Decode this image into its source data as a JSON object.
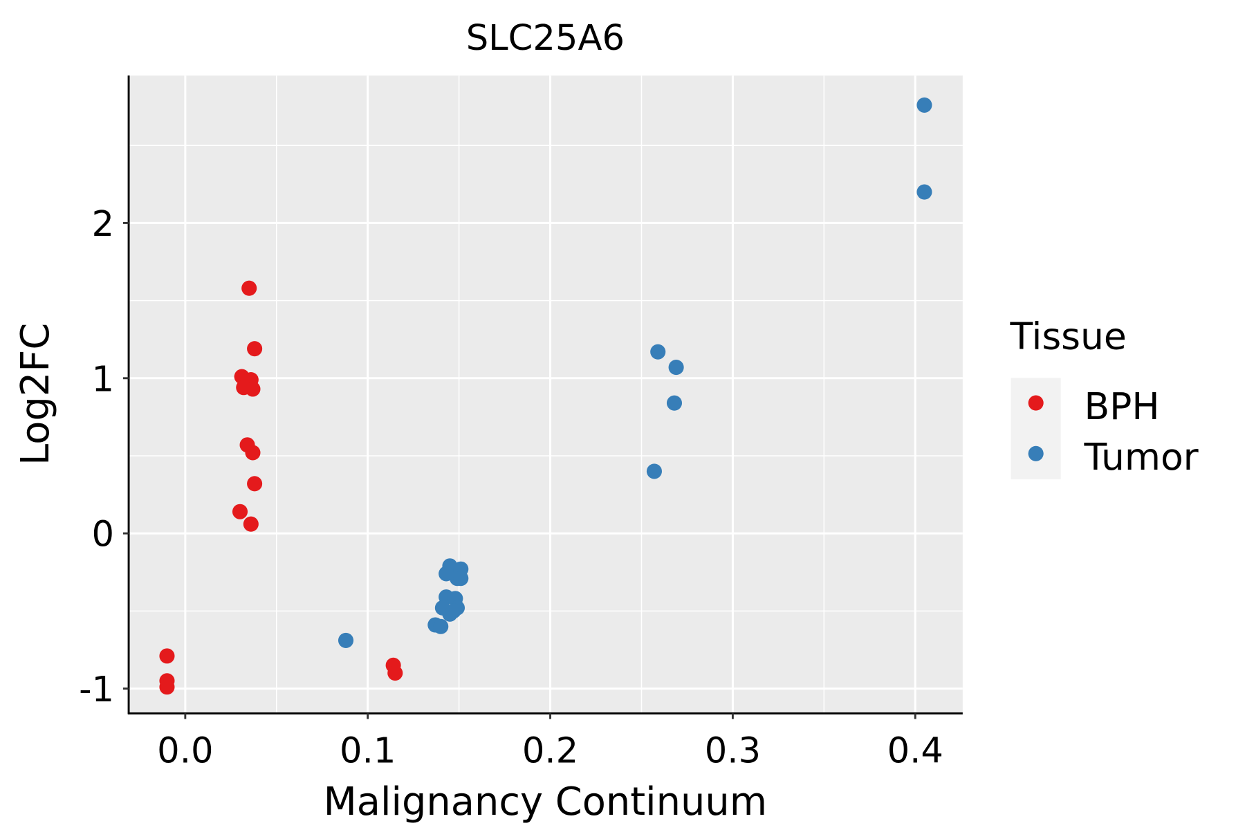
{
  "chart_data": {
    "type": "scatter",
    "title": "SLC25A6",
    "xlabel": "Malignancy Continuum",
    "ylabel": "Log2FC",
    "xlim": [
      -0.031,
      0.426
    ],
    "ylim": [
      -1.16,
      2.95
    ],
    "xticks": [
      0.0,
      0.1,
      0.2,
      0.3,
      0.4
    ],
    "xtick_labels": [
      "0.0",
      "0.1",
      "0.2",
      "0.3",
      "0.4"
    ],
    "yticks": [
      -1,
      0,
      1,
      2
    ],
    "ytick_labels": [
      "-1",
      "0",
      "1",
      "2"
    ],
    "grid": true,
    "legend": {
      "title": "Tissue",
      "placement": "right"
    },
    "series": [
      {
        "name": "BPH",
        "color": "#E41A1C",
        "points": [
          [
            0.035,
            1.58
          ],
          [
            0.038,
            1.19
          ],
          [
            0.031,
            1.01
          ],
          [
            0.036,
            0.99
          ],
          [
            0.032,
            0.94
          ],
          [
            0.037,
            0.93
          ],
          [
            0.034,
            0.57
          ],
          [
            0.037,
            0.52
          ],
          [
            0.038,
            0.32
          ],
          [
            0.03,
            0.14
          ],
          [
            0.036,
            0.06
          ],
          [
            -0.01,
            -0.79
          ],
          [
            -0.01,
            -0.95
          ],
          [
            -0.01,
            -0.99
          ],
          [
            0.114,
            -0.85
          ],
          [
            0.115,
            -0.9
          ]
        ]
      },
      {
        "name": "Tumor",
        "color": "#377EB8",
        "points": [
          [
            0.405,
            2.76
          ],
          [
            0.405,
            2.2
          ],
          [
            0.259,
            1.17
          ],
          [
            0.269,
            1.07
          ],
          [
            0.268,
            0.84
          ],
          [
            0.257,
            0.4
          ],
          [
            0.088,
            -0.69
          ],
          [
            0.145,
            -0.21
          ],
          [
            0.151,
            -0.23
          ],
          [
            0.143,
            -0.26
          ],
          [
            0.149,
            -0.29
          ],
          [
            0.151,
            -0.29
          ],
          [
            0.143,
            -0.41
          ],
          [
            0.148,
            -0.42
          ],
          [
            0.141,
            -0.48
          ],
          [
            0.149,
            -0.48
          ],
          [
            0.145,
            -0.52
          ],
          [
            0.147,
            -0.5
          ],
          [
            0.137,
            -0.59
          ],
          [
            0.14,
            -0.6
          ]
        ]
      }
    ]
  }
}
